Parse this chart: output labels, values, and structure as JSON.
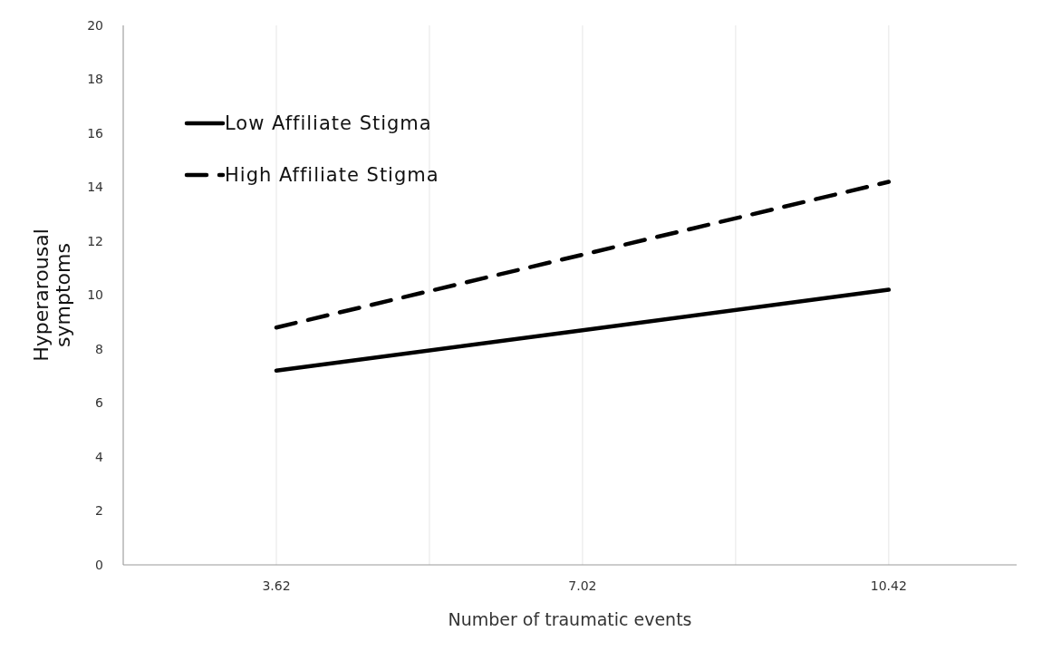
{
  "chart_data": {
    "type": "line",
    "xlabel": "Number of traumatic events",
    "ylabel": "Hyperarousal symptoms",
    "x": [
      3.62,
      7.02,
      10.42
    ],
    "series": [
      {
        "name": "Low Affiliate Stigma",
        "color": "#000000",
        "values": [
          7.2,
          8.7,
          10.2
        ],
        "line_style": "solid"
      },
      {
        "name": "High Affiliate Stigma",
        "color": "#000000",
        "values": [
          8.8,
          11.5,
          14.2
        ],
        "line_style": "dashed"
      }
    ],
    "xlim": [
      1.92,
      11.84
    ],
    "xticks": [
      {
        "value": 1.92,
        "label": null
      },
      3.62,
      {
        "value": 5.32,
        "label": null
      },
      7.02,
      {
        "value": 8.72,
        "label": null
      },
      10.42
    ],
    "ylim": [
      0,
      20
    ],
    "yticks": [
      0,
      2,
      4,
      6,
      8,
      10,
      12,
      14,
      16,
      18,
      20
    ],
    "grid": "x",
    "legend": "top left",
    "marker": "none"
  }
}
